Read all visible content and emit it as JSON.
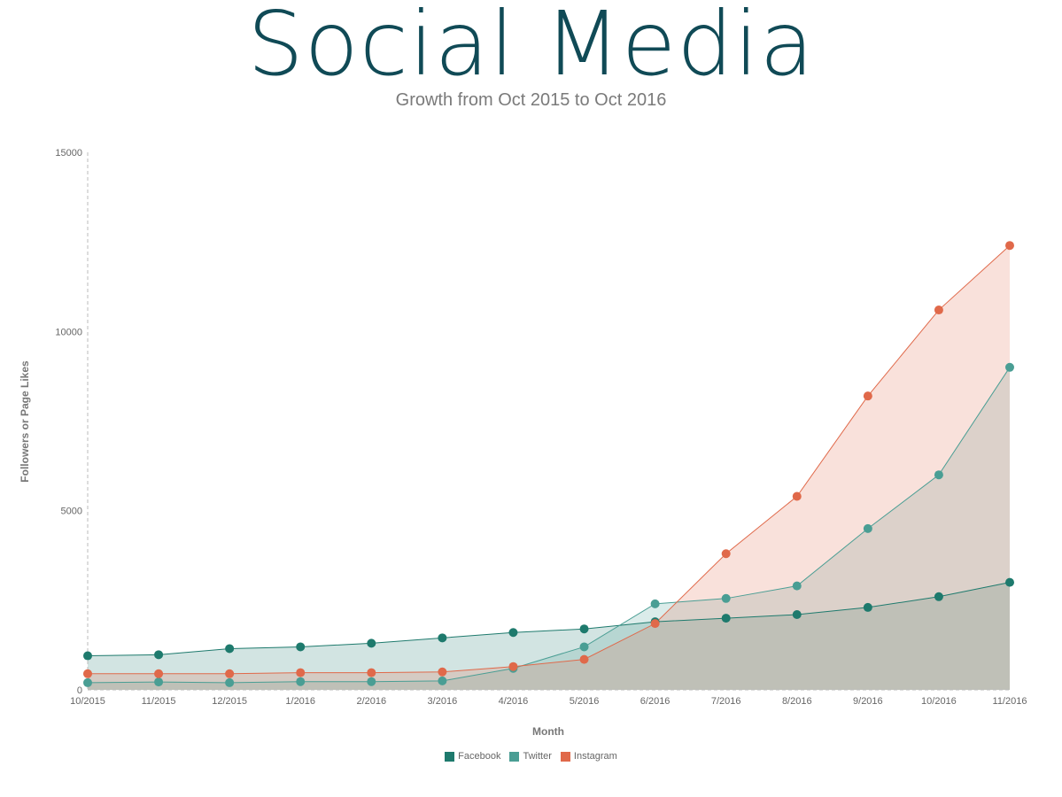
{
  "title": "Social Media",
  "subtitle": "Growth from Oct 2015 to Oct 2016",
  "colors": {
    "title": "#104a56",
    "facebook": "#1e7a6d",
    "twitter": "#4a9e94",
    "instagram": "#e0694a"
  },
  "chart_data": {
    "type": "area",
    "xlabel": "Month",
    "ylabel": "Followers or Page Likes",
    "ylim": [
      0,
      15000
    ],
    "yticks": [
      0,
      5000,
      10000,
      15000
    ],
    "grid": false,
    "legend_position": "bottom-center",
    "categories": [
      "10/2015",
      "11/2015",
      "12/2015",
      "1/2016",
      "2/2016",
      "3/2016",
      "4/2016",
      "5/2016",
      "6/2016",
      "7/2016",
      "8/2016",
      "9/2016",
      "10/2016",
      "11/2016"
    ],
    "series": [
      {
        "name": "Facebook",
        "color": "#1e7a6d",
        "values": [
          950,
          980,
          1150,
          1200,
          1300,
          1450,
          1600,
          1700,
          1900,
          2000,
          2100,
          2300,
          2600,
          3000
        ]
      },
      {
        "name": "Twitter",
        "color": "#4a9e94",
        "values": [
          200,
          220,
          200,
          230,
          230,
          250,
          600,
          1200,
          2400,
          2550,
          2900,
          4500,
          6000,
          9000
        ]
      },
      {
        "name": "Instagram",
        "color": "#e0694a",
        "values": [
          450,
          450,
          450,
          480,
          480,
          500,
          650,
          850,
          1850,
          3800,
          5400,
          8200,
          10600,
          12400
        ]
      }
    ]
  }
}
